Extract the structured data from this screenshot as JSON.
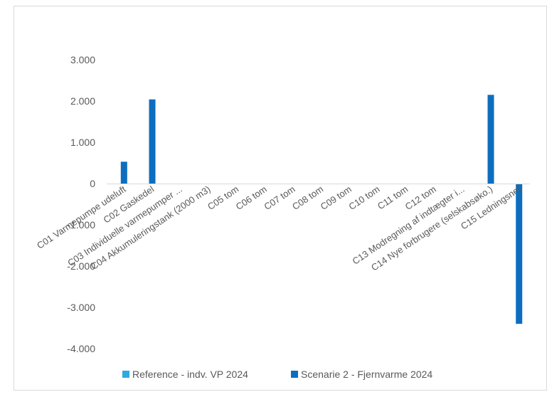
{
  "chart_data": {
    "type": "bar",
    "title": "",
    "xlabel": "",
    "ylabel": "",
    "categories": [
      "C01 Varmepumpe udeluft",
      "C02 Gaskedel",
      "C03 Individuelle varmepumper ...",
      "C04 Akkumuleringstank (2000 m3)",
      "C05 tom",
      "C06 tom",
      "C07 tom",
      "C08 tom",
      "C09 tom",
      "C10 tom",
      "C11 tom",
      "C12 tom",
      "C13 Modregning af indtægter i...",
      "C14 Nye forbrugere (selskabsøko.)",
      "C15 Ledningsnet"
    ],
    "series": [
      {
        "name": "Reference - indv. VP 2024",
        "color": "#2fa9e0",
        "values": [
          0,
          0,
          0,
          0,
          0,
          0,
          0,
          0,
          0,
          0,
          0,
          0,
          0,
          0,
          0
        ]
      },
      {
        "name": "Scenarie 2 - Fjernvarme 2024",
        "color": "#0d6ebf",
        "values": [
          530,
          2040,
          0,
          0,
          0,
          0,
          0,
          0,
          0,
          0,
          0,
          0,
          0,
          2150,
          -3400
        ]
      }
    ],
    "ylim": [
      -4000,
      3000
    ],
    "yticks": [
      {
        "value": 3000,
        "label": "3.000"
      },
      {
        "value": 2000,
        "label": "2.000"
      },
      {
        "value": 1000,
        "label": "1.000"
      },
      {
        "value": 0,
        "label": "0"
      },
      {
        "value": -1000,
        "label": "-1.000"
      },
      {
        "value": -2000,
        "label": "-2.000"
      },
      {
        "value": -3000,
        "label": "-3.000"
      },
      {
        "value": -4000,
        "label": "-4.000"
      }
    ],
    "grid": false,
    "legend_position": "bottom"
  }
}
